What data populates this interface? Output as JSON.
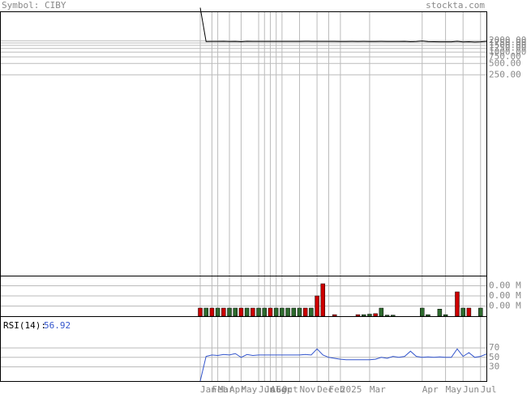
{
  "header": {
    "symbol": "Symbol: CIBY",
    "site": "stockta.com"
  },
  "chart_data": [
    {
      "type": "line",
      "log_scale": true,
      "grid": true,
      "ylim": [
        0.0012,
        12000
      ],
      "yticks": [
        {
          "value": 2000,
          "label": "2000.00"
        },
        {
          "value": 1750,
          "label": "1750.00"
        },
        {
          "value": 1500,
          "label": "1500.00"
        },
        {
          "value": 1250,
          "label": "1250.00"
        },
        {
          "value": 1000,
          "label": "1000.00"
        },
        {
          "value": 750,
          "label": "750.00"
        },
        {
          "value": 500,
          "label": "500.00"
        },
        {
          "value": 250,
          "label": "250.00"
        }
      ],
      "series": [
        {
          "color": "#000000",
          "values": [
            15000,
            1900,
            1920,
            1910,
            1930,
            1900,
            1920,
            1880,
            1930,
            1920,
            1910,
            1920,
            1920,
            1910,
            1920,
            1910,
            1920,
            1915,
            1930,
            1920,
            1910,
            1915,
            1920,
            1910,
            1900,
            1905,
            1910,
            1900,
            1910,
            1905,
            1900,
            1910,
            1905,
            1900,
            1905,
            1910,
            1880,
            1900,
            1960,
            1890,
            1880,
            1870,
            1870,
            1870,
            1930,
            1860,
            1880,
            1850,
            1870,
            1930
          ]
        }
      ]
    },
    {
      "type": "bar",
      "grid": true,
      "ylim": [
        0,
        4000
      ],
      "yticks": [
        {
          "value": 3000,
          "label": "0.00 M"
        },
        {
          "value": 2000,
          "label": "0.00 M"
        },
        {
          "value": 1000,
          "label": "0.00 M"
        }
      ],
      "values": [
        800,
        800,
        800,
        800,
        800,
        800,
        800,
        800,
        800,
        800,
        800,
        800,
        800,
        800,
        800,
        800,
        800,
        800,
        800,
        800,
        2000,
        3200,
        0,
        150,
        0,
        0,
        0,
        150,
        150,
        200,
        250,
        800,
        100,
        100,
        0,
        0,
        0,
        0,
        800,
        150,
        0,
        700,
        150,
        0,
        2400,
        800,
        800,
        0,
        800,
        0
      ],
      "colors": [
        "#cc0000",
        "#2e6b2e",
        "#cc0000",
        "#2e6b2e",
        "#cc0000",
        "#2e6b2e",
        "#2e6b2e",
        "#cc0000",
        "#2e6b2e",
        "#cc0000",
        "#2e6b2e",
        "#2e6b2e",
        "#cc0000",
        "#2e6b2e",
        "#2e6b2e",
        "#2e6b2e",
        "#2e6b2e",
        "#2e6b2e",
        "#cc0000",
        "#2e6b2e",
        "#cc0000",
        "#cc0000",
        "#cc0000",
        "#cc0000",
        "#2e6b2e",
        "#2e6b2e",
        "#2e6b2e",
        "#cc0000",
        "#2e6b2e",
        "#2e6b2e",
        "#cc0000",
        "#2e6b2e",
        "#2e6b2e",
        "#2e6b2e",
        "#2e6b2e",
        "#2e6b2e",
        "#2e6b2e",
        "#2e6b2e",
        "#2e6b2e",
        "#2e6b2e",
        "#2e6b2e",
        "#2e6b2e",
        "#2e6b2e",
        "#2e6b2e",
        "#cc0000",
        "#2e6b2e",
        "#cc0000",
        "#2e6b2e",
        "#2e6b2e",
        "#2e6b2e"
      ]
    },
    {
      "type": "line",
      "grid": true,
      "ylim": [
        0,
        137
      ],
      "yticks": [
        70,
        50,
        30
      ],
      "label": "RSI(14):",
      "current": "56.92",
      "xlim": [
        0,
        49
      ],
      "xticks": [
        {
          "value": 0,
          "label": "Jan"
        },
        {
          "value": 2,
          "label": "Feb"
        },
        {
          "value": 3,
          "label": "Mar"
        },
        {
          "value": 5,
          "label": "Apr"
        },
        {
          "value": 7,
          "label": "May"
        },
        {
          "value": 10,
          "label": "Jun"
        },
        {
          "value": 11,
          "label": "Jul"
        },
        {
          "value": 12,
          "label": "Aug"
        },
        {
          "value": 13,
          "label": "Sep"
        },
        {
          "value": 14,
          "label": "Oct"
        },
        {
          "value": 17,
          "label": "Nov"
        },
        {
          "value": 20,
          "label": "Dec"
        },
        {
          "value": 22,
          "label": "Feb"
        },
        {
          "value": 24,
          "label": "2025"
        },
        {
          "value": 29,
          "label": "Mar"
        },
        {
          "value": 38,
          "label": "Apr"
        },
        {
          "value": 42,
          "label": "May"
        },
        {
          "value": 45,
          "label": "Jun"
        },
        {
          "value": 48,
          "label": "Jul"
        }
      ],
      "series": [
        {
          "color": "#3355cc",
          "values": [
            0,
            52,
            55,
            54,
            56,
            55,
            58,
            50,
            56,
            54,
            55,
            55,
            55,
            55,
            55,
            55,
            55,
            55,
            56,
            55,
            68,
            55,
            50,
            48,
            46,
            45,
            45,
            45,
            45,
            45,
            46,
            50,
            48,
            52,
            50,
            52,
            63,
            52,
            50,
            51,
            50,
            51,
            50,
            50,
            68,
            52,
            60,
            50,
            52,
            57
          ]
        }
      ]
    }
  ]
}
